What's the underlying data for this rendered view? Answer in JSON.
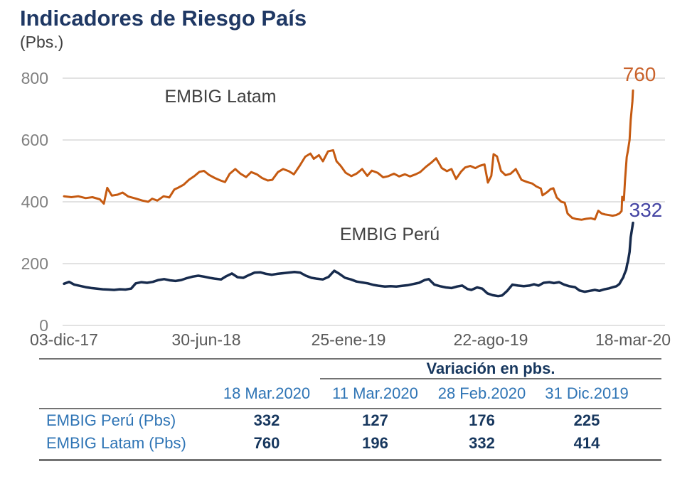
{
  "header": {
    "title": "Indicadores de Riesgo País",
    "subtitle": "(Pbs.)"
  },
  "chart_data": {
    "type": "line",
    "title": "Indicadores de Riesgo País",
    "ylabel": "Pbs.",
    "ylim": [
      0,
      800
    ],
    "grid": true,
    "gridline_color": "#D9D9D9",
    "y_ticks": [
      0,
      200,
      400,
      600,
      800
    ],
    "x_ticks": [
      {
        "label": "03-dic-17",
        "t": 0
      },
      {
        "label": "30-jun-18",
        "t": 0.25
      },
      {
        "label": "25-ene-19",
        "t": 0.5
      },
      {
        "label": "22-ago-19",
        "t": 0.75
      },
      {
        "label": "18-mar-20",
        "t": 1
      }
    ],
    "series": [
      {
        "name": "EMBIG Latam",
        "color": "#C55A11",
        "end_value": "760",
        "end_label_color": "#C9622B",
        "points": [
          [
            0,
            418
          ],
          [
            0.013,
            415
          ],
          [
            0.025,
            418
          ],
          [
            0.038,
            412
          ],
          [
            0.05,
            415
          ],
          [
            0.063,
            408
          ],
          [
            0.07,
            394
          ],
          [
            0.076,
            445
          ],
          [
            0.084,
            420
          ],
          [
            0.094,
            423
          ],
          [
            0.103,
            430
          ],
          [
            0.113,
            417
          ],
          [
            0.125,
            411
          ],
          [
            0.138,
            404
          ],
          [
            0.148,
            400
          ],
          [
            0.155,
            410
          ],
          [
            0.164,
            404
          ],
          [
            0.175,
            418
          ],
          [
            0.185,
            414
          ],
          [
            0.194,
            440
          ],
          [
            0.201,
            446
          ],
          [
            0.21,
            455
          ],
          [
            0.22,
            472
          ],
          [
            0.229,
            483
          ],
          [
            0.238,
            497
          ],
          [
            0.246,
            500
          ],
          [
            0.255,
            487
          ],
          [
            0.265,
            477
          ],
          [
            0.275,
            469
          ],
          [
            0.283,
            464
          ],
          [
            0.291,
            490
          ],
          [
            0.301,
            506
          ],
          [
            0.31,
            491
          ],
          [
            0.32,
            480
          ],
          [
            0.329,
            496
          ],
          [
            0.339,
            489
          ],
          [
            0.348,
            477
          ],
          [
            0.358,
            469
          ],
          [
            0.366,
            471
          ],
          [
            0.376,
            496
          ],
          [
            0.385,
            506
          ],
          [
            0.395,
            499
          ],
          [
            0.404,
            489
          ],
          [
            0.414,
            516
          ],
          [
            0.424,
            546
          ],
          [
            0.433,
            556
          ],
          [
            0.439,
            539
          ],
          [
            0.448,
            551
          ],
          [
            0.455,
            531
          ],
          [
            0.464,
            563
          ],
          [
            0.473,
            567
          ],
          [
            0.479,
            531
          ],
          [
            0.486,
            517
          ],
          [
            0.495,
            494
          ],
          [
            0.505,
            483
          ],
          [
            0.514,
            491
          ],
          [
            0.524,
            506
          ],
          [
            0.533,
            484
          ],
          [
            0.541,
            501
          ],
          [
            0.551,
            494
          ],
          [
            0.561,
            479
          ],
          [
            0.57,
            483
          ],
          [
            0.58,
            491
          ],
          [
            0.589,
            482
          ],
          [
            0.599,
            489
          ],
          [
            0.608,
            482
          ],
          [
            0.618,
            489
          ],
          [
            0.626,
            496
          ],
          [
            0.636,
            513
          ],
          [
            0.645,
            526
          ],
          [
            0.654,
            541
          ],
          [
            0.664,
            509
          ],
          [
            0.673,
            499
          ],
          [
            0.681,
            506
          ],
          [
            0.689,
            474
          ],
          [
            0.698,
            498
          ],
          [
            0.705,
            511
          ],
          [
            0.714,
            516
          ],
          [
            0.723,
            509
          ],
          [
            0.73,
            516
          ],
          [
            0.739,
            521
          ],
          [
            0.745,
            462
          ],
          [
            0.751,
            484
          ],
          [
            0.755,
            554
          ],
          [
            0.761,
            547
          ],
          [
            0.768,
            500
          ],
          [
            0.776,
            486
          ],
          [
            0.785,
            491
          ],
          [
            0.794,
            506
          ],
          [
            0.804,
            471
          ],
          [
            0.814,
            464
          ],
          [
            0.823,
            459
          ],
          [
            0.83,
            450
          ],
          [
            0.838,
            443
          ],
          [
            0.841,
            421
          ],
          [
            0.849,
            431
          ],
          [
            0.855,
            441
          ],
          [
            0.86,
            444
          ],
          [
            0.866,
            414
          ],
          [
            0.874,
            400
          ],
          [
            0.88,
            397
          ],
          [
            0.885,
            362
          ],
          [
            0.893,
            348
          ],
          [
            0.901,
            344
          ],
          [
            0.91,
            342
          ],
          [
            0.918,
            345
          ],
          [
            0.926,
            347
          ],
          [
            0.933,
            343
          ],
          [
            0.939,
            371
          ],
          [
            0.945,
            362
          ],
          [
            0.951,
            359
          ],
          [
            0.958,
            357
          ],
          [
            0.964,
            355
          ],
          [
            0.97,
            357
          ],
          [
            0.976,
            362
          ],
          [
            0.98,
            370
          ],
          [
            0.981,
            416
          ],
          [
            0.984,
            405
          ],
          [
            0.986,
            470
          ],
          [
            0.989,
            545
          ],
          [
            0.991,
            564
          ],
          [
            0.994,
            600
          ],
          [
            0.996,
            665
          ],
          [
            0.999,
            725
          ],
          [
            1,
            760
          ]
        ]
      },
      {
        "name": "EMBIG Perú",
        "color": "#172B4D",
        "end_value": "332",
        "end_label_color": "#4444A3",
        "points": [
          [
            0,
            135
          ],
          [
            0.009,
            141
          ],
          [
            0.018,
            132
          ],
          [
            0.028,
            128
          ],
          [
            0.038,
            124
          ],
          [
            0.048,
            121
          ],
          [
            0.058,
            119
          ],
          [
            0.068,
            117
          ],
          [
            0.078,
            116
          ],
          [
            0.088,
            115
          ],
          [
            0.098,
            117
          ],
          [
            0.108,
            116
          ],
          [
            0.118,
            119
          ],
          [
            0.126,
            136
          ],
          [
            0.136,
            140
          ],
          [
            0.146,
            138
          ],
          [
            0.156,
            141
          ],
          [
            0.166,
            147
          ],
          [
            0.176,
            150
          ],
          [
            0.186,
            146
          ],
          [
            0.196,
            144
          ],
          [
            0.206,
            147
          ],
          [
            0.216,
            153
          ],
          [
            0.226,
            158
          ],
          [
            0.236,
            161
          ],
          [
            0.246,
            158
          ],
          [
            0.256,
            154
          ],
          [
            0.266,
            151
          ],
          [
            0.276,
            149
          ],
          [
            0.285,
            159
          ],
          [
            0.295,
            168
          ],
          [
            0.305,
            156
          ],
          [
            0.315,
            154
          ],
          [
            0.325,
            163
          ],
          [
            0.335,
            171
          ],
          [
            0.345,
            172
          ],
          [
            0.355,
            167
          ],
          [
            0.365,
            164
          ],
          [
            0.375,
            167
          ],
          [
            0.385,
            169
          ],
          [
            0.395,
            171
          ],
          [
            0.405,
            173
          ],
          [
            0.415,
            171
          ],
          [
            0.425,
            161
          ],
          [
            0.435,
            154
          ],
          [
            0.445,
            151
          ],
          [
            0.455,
            149
          ],
          [
            0.465,
            157
          ],
          [
            0.475,
            177
          ],
          [
            0.484,
            167
          ],
          [
            0.494,
            154
          ],
          [
            0.504,
            149
          ],
          [
            0.514,
            142
          ],
          [
            0.524,
            139
          ],
          [
            0.534,
            136
          ],
          [
            0.544,
            131
          ],
          [
            0.554,
            128
          ],
          [
            0.564,
            126
          ],
          [
            0.574,
            127
          ],
          [
            0.584,
            126
          ],
          [
            0.594,
            128
          ],
          [
            0.604,
            130
          ],
          [
            0.614,
            134
          ],
          [
            0.624,
            138
          ],
          [
            0.634,
            147
          ],
          [
            0.641,
            150
          ],
          [
            0.651,
            132
          ],
          [
            0.661,
            127
          ],
          [
            0.671,
            123
          ],
          [
            0.681,
            121
          ],
          [
            0.691,
            126
          ],
          [
            0.7,
            129
          ],
          [
            0.709,
            118
          ],
          [
            0.716,
            115
          ],
          [
            0.726,
            123
          ],
          [
            0.735,
            119
          ],
          [
            0.744,
            104
          ],
          [
            0.753,
            98
          ],
          [
            0.763,
            95
          ],
          [
            0.77,
            97
          ],
          [
            0.779,
            112
          ],
          [
            0.788,
            132
          ],
          [
            0.798,
            129
          ],
          [
            0.808,
            127
          ],
          [
            0.818,
            129
          ],
          [
            0.826,
            133
          ],
          [
            0.834,
            129
          ],
          [
            0.843,
            138
          ],
          [
            0.853,
            140
          ],
          [
            0.861,
            137
          ],
          [
            0.87,
            140
          ],
          [
            0.879,
            132
          ],
          [
            0.888,
            127
          ],
          [
            0.898,
            124
          ],
          [
            0.906,
            113
          ],
          [
            0.915,
            109
          ],
          [
            0.924,
            112
          ],
          [
            0.933,
            115
          ],
          [
            0.941,
            112
          ],
          [
            0.95,
            117
          ],
          [
            0.958,
            120
          ],
          [
            0.965,
            124
          ],
          [
            0.971,
            127
          ],
          [
            0.976,
            134
          ],
          [
            0.98,
            147
          ],
          [
            0.983,
            156
          ],
          [
            0.985,
            167
          ],
          [
            0.988,
            180
          ],
          [
            0.99,
            200
          ],
          [
            0.991,
            205
          ],
          [
            0.994,
            238
          ],
          [
            0.996,
            285
          ],
          [
            0.999,
            320
          ],
          [
            1,
            332
          ]
        ]
      }
    ]
  },
  "table": {
    "variation_header": "Variación en pbs.",
    "columns": [
      "",
      "18 Mar.2020",
      "11 Mar.2020",
      "28 Feb.2020",
      "31 Dic.2019"
    ],
    "rows": [
      {
        "label": "EMBIG Perú (Pbs)",
        "values": [
          "332",
          "127",
          "176",
          "225"
        ]
      },
      {
        "label": "EMBIG Latam (Pbs)",
        "values": [
          "760",
          "196",
          "332",
          "414"
        ]
      }
    ]
  }
}
